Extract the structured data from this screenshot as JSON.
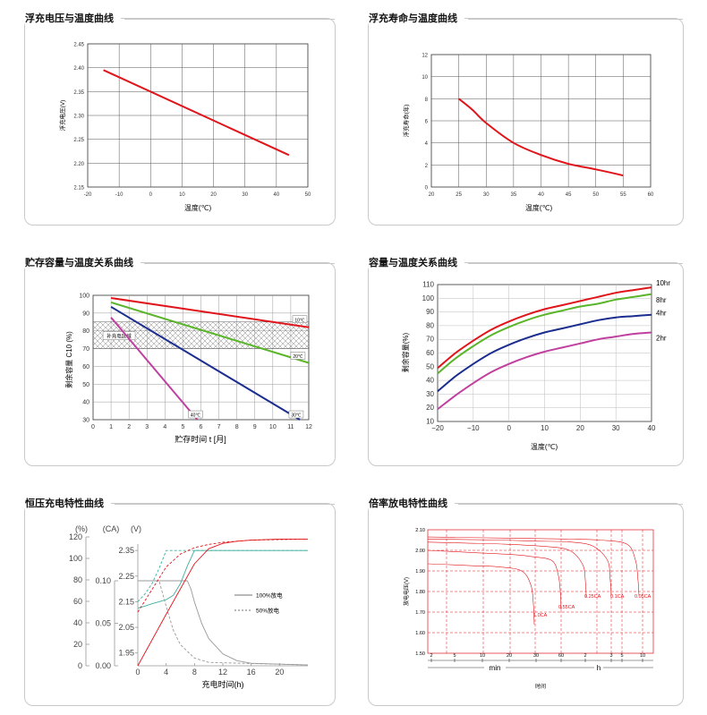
{
  "chart_data": [
    {
      "id": "float-voltage",
      "type": "line",
      "title": "浮充电压与温度曲线",
      "xlabel": "温度(℃)",
      "ylabel": "浮充电压(V)",
      "xlim": [
        -20,
        50
      ],
      "ylim": [
        2.15,
        2.45
      ],
      "xticks": [
        "-20",
        "-10",
        "0",
        "10",
        "20",
        "30",
        "40",
        "50"
      ],
      "yticks": [
        "2.15",
        "2.20",
        "2.25",
        "2.30",
        "2.35",
        "2.40",
        "2.45"
      ],
      "color": "#e0151b",
      "series": [
        {
          "name": "浮充电压",
          "x": [
            -15,
            44
          ],
          "y": [
            2.395,
            2.217
          ]
        }
      ]
    },
    {
      "id": "float-life",
      "type": "line",
      "title": "浮充寿命与温度曲线",
      "xlabel": "温度(℃)",
      "ylabel": "浮充寿命(年)",
      "xlim": [
        20,
        60
      ],
      "ylim": [
        0,
        12
      ],
      "xticks": [
        "20",
        "25",
        "30",
        "35",
        "40",
        "45",
        "50",
        "55",
        "60"
      ],
      "yticks": [
        "0",
        "2",
        "4",
        "6",
        "8",
        "10",
        "12"
      ],
      "color": "#e0151b",
      "series": [
        {
          "name": "浮充寿命",
          "x": [
            25,
            27.5,
            30,
            35,
            40,
            45,
            50,
            55
          ],
          "y": [
            8,
            7,
            5.8,
            4,
            2.9,
            2.1,
            1.6,
            1.05
          ]
        }
      ]
    },
    {
      "id": "storage-capacity",
      "type": "line",
      "title": "贮存容量与温度关系曲线",
      "xlabel": "贮存时间 t [月]",
      "ylabel": "剩余容量 C10 (%)",
      "xlim": [
        0,
        12
      ],
      "ylim": [
        30,
        100
      ],
      "xticks": [
        "0",
        "1",
        "2",
        "3",
        "4",
        "5",
        "6",
        "7",
        "8",
        "9",
        "10",
        "11",
        "12"
      ],
      "yticks": [
        "30",
        "40",
        "50",
        "60",
        "70",
        "80",
        "90",
        "100"
      ],
      "band": {
        "from": 70,
        "to": 85,
        "label": "补充电区域"
      },
      "series": [
        {
          "name": "10℃",
          "color": "#e0151b",
          "x": [
            1,
            12
          ],
          "y": [
            98.5,
            82
          ]
        },
        {
          "name": "20℃",
          "color": "#5ab52a",
          "x": [
            1,
            12
          ],
          "y": [
            96,
            62
          ]
        },
        {
          "name": "30℃",
          "color": "#1b2d8f",
          "x": [
            1,
            11.5
          ],
          "y": [
            93.5,
            30
          ]
        },
        {
          "name": "40℃",
          "color": "#c040a0",
          "x": [
            1,
            5.8
          ],
          "y": [
            87.5,
            30
          ]
        }
      ]
    },
    {
      "id": "capacity-temperature",
      "type": "line",
      "title": "容量与温度关系曲线",
      "xlabel": "温度(℃)",
      "ylabel": "剩余容量(%)",
      "xlim": [
        -20,
        40
      ],
      "ylim": [
        10,
        110
      ],
      "xticks": [
        "−20",
        "−10",
        "0",
        "10",
        "20",
        "30",
        "40"
      ],
      "yticks": [
        "10",
        "20",
        "30",
        "40",
        "50",
        "60",
        "70",
        "80",
        "90",
        "100",
        "110"
      ],
      "series": [
        {
          "name": "10hr",
          "color": "#e0151b",
          "x": [
            -20,
            -15,
            -10,
            -5,
            0,
            5,
            10,
            15,
            20,
            25,
            30,
            35,
            40
          ],
          "y": [
            49,
            60,
            69,
            77,
            83,
            88,
            92,
            95,
            98,
            101,
            104,
            106,
            108
          ]
        },
        {
          "name": "8hr",
          "color": "#5ab52a",
          "x": [
            -20,
            -15,
            -10,
            -5,
            0,
            5,
            10,
            15,
            20,
            25,
            30,
            35,
            40
          ],
          "y": [
            45,
            56,
            65,
            73,
            79,
            84,
            88,
            91,
            94,
            96,
            99,
            101,
            103
          ]
        },
        {
          "name": "4hr",
          "color": "#1b2d8f",
          "x": [
            -20,
            -15,
            -10,
            -5,
            0,
            5,
            10,
            15,
            20,
            25,
            30,
            35,
            40
          ],
          "y": [
            32,
            43,
            52,
            60,
            66,
            71,
            75,
            78,
            81,
            84,
            86,
            87,
            88
          ]
        },
        {
          "name": "2hr",
          "color": "#c040a0",
          "x": [
            -20,
            -15,
            -10,
            -5,
            0,
            5,
            10,
            15,
            20,
            25,
            30,
            35,
            40
          ],
          "y": [
            19,
            29,
            38,
            46,
            52,
            57,
            61,
            64,
            67,
            70,
            72,
            74,
            75
          ]
        }
      ]
    },
    {
      "id": "cv-charge",
      "type": "line",
      "title": "恒压充电特性曲线",
      "xlabel": "充电时间(h)",
      "axis_units": [
        "(%)",
        "(CA)",
        "(V)"
      ],
      "xlim": [
        0,
        24
      ],
      "xticks": [
        "0",
        "4",
        "8",
        "12",
        "16",
        "20"
      ],
      "pct_ticks": [
        "0",
        "20",
        "40",
        "60",
        "80",
        "100",
        "120"
      ],
      "ca_ticks": [
        "0.00",
        "0.05",
        "0.10"
      ],
      "v_ticks": [
        "1.95",
        "2.05",
        "2.15",
        "2.25",
        "2.35"
      ],
      "legend": [
        {
          "name": "100%放电",
          "style": "solid"
        },
        {
          "name": "50%放电",
          "style": "dashed"
        }
      ],
      "series": [
        {
          "name": "电压 100%放电",
          "style": "solid",
          "color": "#3fae9c",
          "x": [
            0,
            1,
            2,
            3,
            4,
            5,
            6,
            7,
            8,
            12,
            16,
            24
          ],
          "y": [
            2.125,
            2.133,
            2.142,
            2.15,
            2.158,
            2.175,
            2.22,
            2.29,
            2.35,
            2.35,
            2.35,
            2.35
          ]
        },
        {
          "name": "电压 50%放电",
          "style": "dashed",
          "color": "#3fae9c",
          "x": [
            0,
            1,
            2,
            3,
            4,
            5,
            8,
            24
          ],
          "y": [
            2.15,
            2.18,
            2.22,
            2.28,
            2.35,
            2.35,
            2.35,
            2.35
          ]
        },
        {
          "name": "电流 100%放电",
          "style": "solid",
          "color": "#999999",
          "x": [
            0,
            7,
            7.5,
            8,
            9,
            10,
            12,
            14,
            16,
            24
          ],
          "y": [
            0.1,
            0.1,
            0.09,
            0.075,
            0.05,
            0.032,
            0.014,
            0.006,
            0.003,
            0.001
          ]
        },
        {
          "name": "电流 50%放电",
          "style": "dashed",
          "color": "#999999",
          "x": [
            0,
            3,
            3.5,
            4,
            5,
            6,
            8,
            10,
            24
          ],
          "y": [
            0.1,
            0.1,
            0.085,
            0.07,
            0.042,
            0.025,
            0.009,
            0.004,
            0.001
          ]
        },
        {
          "name": "容量 100%放电",
          "style": "solid",
          "color": "#e0151b",
          "x": [
            0,
            4,
            8,
            10,
            12,
            14,
            16,
            20,
            24
          ],
          "y": [
            0,
            48,
            95,
            109,
            114,
            116,
            117,
            118,
            118
          ]
        },
        {
          "name": "容量 50%放电",
          "style": "dashed",
          "color": "#e0151b",
          "x": [
            0,
            4,
            6,
            8,
            10,
            12,
            16,
            24
          ],
          "y": [
            50,
            92,
            104,
            110,
            113,
            115,
            117,
            118
          ]
        }
      ]
    },
    {
      "id": "rate-discharge",
      "type": "line",
      "title": "倍率放电特性曲线",
      "xlabel": "时间",
      "ylabel": "放电电压(V)",
      "ylim": [
        1.5,
        2.1
      ],
      "yticks": [
        "1.50",
        "1.60",
        "1.70",
        "1.80",
        "1.90",
        "2.00",
        "2.10"
      ],
      "xticks": [
        "2",
        "5",
        "10",
        "20",
        "30",
        "60",
        "2",
        "3",
        "5",
        "10",
        "20"
      ],
      "axis_units": [
        "min",
        "h"
      ],
      "series": [
        {
          "name": "1.0CA",
          "color": "#e0151b",
          "x": [
            0,
            0.5,
            1,
            1.5,
            2,
            2.2,
            2.25,
            2.27
          ],
          "y": [
            1.935,
            1.93,
            1.925,
            1.92,
            1.9,
            1.83,
            1.74,
            1.64
          ]
        },
        {
          "name": "0.55CA",
          "color": "#e0151b",
          "x": [
            0,
            1,
            2,
            2.5,
            3,
            3.15,
            3.2,
            3.22
          ],
          "y": [
            2.0,
            1.99,
            1.98,
            1.97,
            1.95,
            1.88,
            1.8,
            1.71
          ]
        },
        {
          "name": "0.25CA",
          "color": "#e0151b",
          "x": [
            0,
            1,
            2,
            3,
            3.7,
            4.05,
            4.12,
            4.14
          ],
          "y": [
            2.04,
            2.035,
            2.03,
            2.02,
            2.0,
            1.93,
            1.85,
            1.77
          ]
        },
        {
          "name": "0.1CA",
          "color": "#e0151b",
          "x": [
            0,
            2,
            3,
            4,
            4.6,
            5.0,
            5.07,
            5.1
          ],
          "y": [
            2.055,
            2.05,
            2.045,
            2.04,
            2.02,
            1.95,
            1.86,
            1.78
          ]
        },
        {
          "name": "0.05CA",
          "color": "#e0151b",
          "x": [
            0,
            2,
            4,
            5,
            5.8,
            6.05,
            6.12,
            6.15
          ],
          "y": [
            2.065,
            2.06,
            2.055,
            2.05,
            2.03,
            1.95,
            1.86,
            1.78
          ]
        }
      ]
    }
  ]
}
